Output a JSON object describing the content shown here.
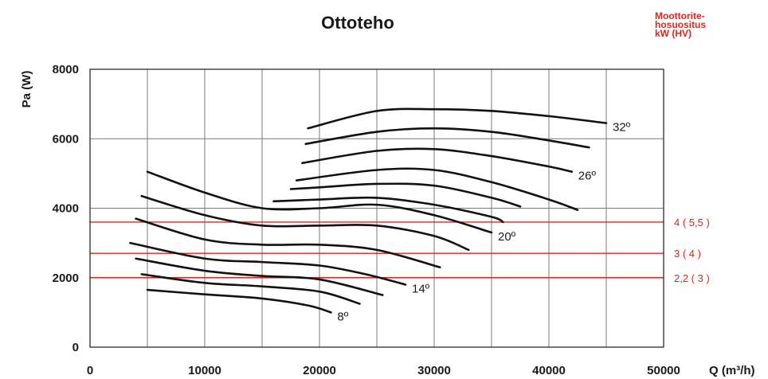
{
  "chart_data": {
    "type": "line",
    "title": "Ottoteho",
    "note_lines": [
      "Moottorite-",
      "hosuositus",
      "kW (HV)"
    ],
    "xlabel": "Q (m³/h)",
    "ylabel": "Pa (W)",
    "xlim": [
      0,
      50000
    ],
    "ylim": [
      0,
      8000
    ],
    "x_ticks": [
      "0",
      "10000",
      "20000",
      "30000",
      "40000",
      "50000"
    ],
    "y_ticks": [
      "0",
      "2000",
      "4000",
      "6000",
      "8000"
    ],
    "grid": true,
    "reference_lines": [
      {
        "y": 3600,
        "label": "4 ( 5,5 )",
        "color": "#e2231a"
      },
      {
        "y": 2700,
        "label": "3 ( 4 )",
        "color": "#e2231a"
      },
      {
        "y": 2000,
        "label": "2,2 ( 3 )",
        "color": "#e2231a"
      }
    ],
    "series": [
      {
        "name": "8º",
        "points": [
          [
            5000,
            1650
          ],
          [
            10000,
            1520
          ],
          [
            15000,
            1400
          ],
          [
            19000,
            1200
          ],
          [
            21000,
            1000
          ]
        ]
      },
      {
        "name": "",
        "points": [
          [
            4500,
            2100
          ],
          [
            10000,
            1850
          ],
          [
            15000,
            1750
          ],
          [
            20000,
            1600
          ],
          [
            23500,
            1250
          ]
        ]
      },
      {
        "name": "",
        "points": [
          [
            4000,
            2550
          ],
          [
            10000,
            2200
          ],
          [
            15000,
            2050
          ],
          [
            20000,
            1950
          ],
          [
            25500,
            1500
          ]
        ]
      },
      {
        "name": "14º",
        "points": [
          [
            3500,
            3000
          ],
          [
            10000,
            2550
          ],
          [
            15000,
            2450
          ],
          [
            20000,
            2350
          ],
          [
            24000,
            2100
          ],
          [
            27500,
            1800
          ]
        ]
      },
      {
        "name": "",
        "points": [
          [
            4000,
            3700
          ],
          [
            10000,
            3100
          ],
          [
            15000,
            2950
          ],
          [
            20000,
            2950
          ],
          [
            25000,
            2800
          ],
          [
            30500,
            2300
          ]
        ]
      },
      {
        "name": "",
        "points": [
          [
            4500,
            4350
          ],
          [
            10000,
            3800
          ],
          [
            15000,
            3500
          ],
          [
            20000,
            3500
          ],
          [
            25000,
            3500
          ],
          [
            30000,
            3200
          ],
          [
            33000,
            2800
          ]
        ]
      },
      {
        "name": "20º",
        "points": [
          [
            5000,
            5050
          ],
          [
            10000,
            4450
          ],
          [
            15000,
            4000
          ],
          [
            20000,
            4000
          ],
          [
            25000,
            4100
          ],
          [
            30000,
            3800
          ],
          [
            35000,
            3300
          ]
        ]
      },
      {
        "name": "",
        "points": [
          [
            16000,
            4200
          ],
          [
            20000,
            4250
          ],
          [
            25000,
            4300
          ],
          [
            30000,
            4100
          ],
          [
            35000,
            3750
          ],
          [
            36000,
            3600
          ]
        ]
      },
      {
        "name": "",
        "points": [
          [
            17500,
            4550
          ],
          [
            20000,
            4600
          ],
          [
            25000,
            4700
          ],
          [
            30000,
            4650
          ],
          [
            35000,
            4300
          ],
          [
            37500,
            4050
          ]
        ]
      },
      {
        "name": "",
        "points": [
          [
            18000,
            4800
          ],
          [
            25000,
            5100
          ],
          [
            30000,
            5100
          ],
          [
            35000,
            4750
          ],
          [
            40000,
            4250
          ],
          [
            42500,
            3950
          ]
        ]
      },
      {
        "name": "26º",
        "points": [
          [
            18500,
            5300
          ],
          [
            25000,
            5650
          ],
          [
            30000,
            5700
          ],
          [
            35000,
            5500
          ],
          [
            40000,
            5200
          ],
          [
            42000,
            5050
          ]
        ]
      },
      {
        "name": "",
        "points": [
          [
            18800,
            5850
          ],
          [
            25000,
            6200
          ],
          [
            30000,
            6300
          ],
          [
            35000,
            6200
          ],
          [
            40000,
            5950
          ],
          [
            43500,
            5750
          ]
        ]
      },
      {
        "name": "32º",
        "points": [
          [
            19000,
            6300
          ],
          [
            25000,
            6800
          ],
          [
            30000,
            6850
          ],
          [
            35000,
            6800
          ],
          [
            40000,
            6650
          ],
          [
            45000,
            6450
          ]
        ]
      }
    ],
    "colors": {
      "curve": "#111111",
      "grid": "#7a7a7a",
      "reference": "#e2231a",
      "text": "#1a1a1a"
    }
  }
}
